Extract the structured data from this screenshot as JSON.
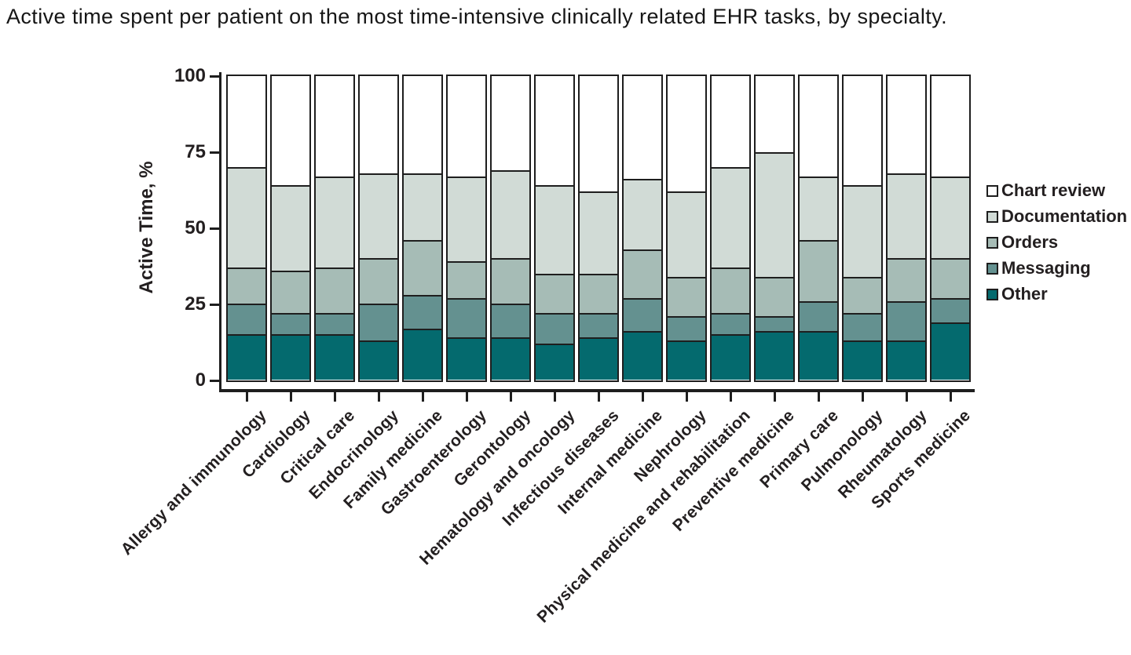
{
  "title": "Active time spent per patient on the most time-intensive clinically related EHR tasks, by specialty.",
  "chart_data": {
    "type": "bar",
    "stacked": true,
    "title": "Active time spent per patient on the most time-intensive clinically related EHR tasks, by specialty.",
    "xlabel": "",
    "ylabel": "Active Time, %",
    "ylim": [
      0,
      100
    ],
    "yticks": [
      0,
      25,
      50,
      75,
      100
    ],
    "grid": false,
    "legend_position": "right",
    "stack_order_bottom_to_top": [
      "Other",
      "Messaging",
      "Orders",
      "Documentation",
      "Chart review"
    ],
    "categories": [
      "Allergy and immunology",
      "Cardiology",
      "Critical care",
      "Endocrinology",
      "Family medicine",
      "Gastroenterology",
      "Gerontology",
      "Hematology and oncology",
      "Infectious diseases",
      "Internal medicine",
      "Nephrology",
      "Physical medicine and rehabilitation",
      "Preventive medicine",
      "Primary care",
      "Pulmonology",
      "Rheumatology",
      "Sports medicine"
    ],
    "series": [
      {
        "name": "Chart review",
        "color": "#ffffff",
        "values": [
          30,
          36,
          33,
          32,
          32,
          33,
          31,
          36,
          38,
          34,
          38,
          30,
          25,
          33,
          36,
          32,
          33
        ]
      },
      {
        "name": "Documentation",
        "color": "#d1dbd6",
        "values": [
          33,
          28,
          30,
          28,
          22,
          28,
          29,
          29,
          27,
          23,
          28,
          33,
          41,
          21,
          30,
          28,
          27
        ]
      },
      {
        "name": "Orders",
        "color": "#a6bcb6",
        "values": [
          12,
          14,
          15,
          15,
          18,
          12,
          15,
          13,
          13,
          16,
          13,
          15,
          13,
          20,
          12,
          14,
          13
        ]
      },
      {
        "name": "Messaging",
        "color": "#649190",
        "values": [
          10,
          7,
          7,
          12,
          11,
          13,
          11,
          10,
          8,
          11,
          8,
          7,
          5,
          10,
          9,
          13,
          8
        ]
      },
      {
        "name": "Other",
        "color": "#046a6e",
        "values": [
          15,
          15,
          15,
          13,
          17,
          14,
          14,
          12,
          14,
          16,
          13,
          15,
          16,
          16,
          13,
          13,
          19
        ]
      }
    ],
    "ink_color": "#1e1e1e"
  }
}
